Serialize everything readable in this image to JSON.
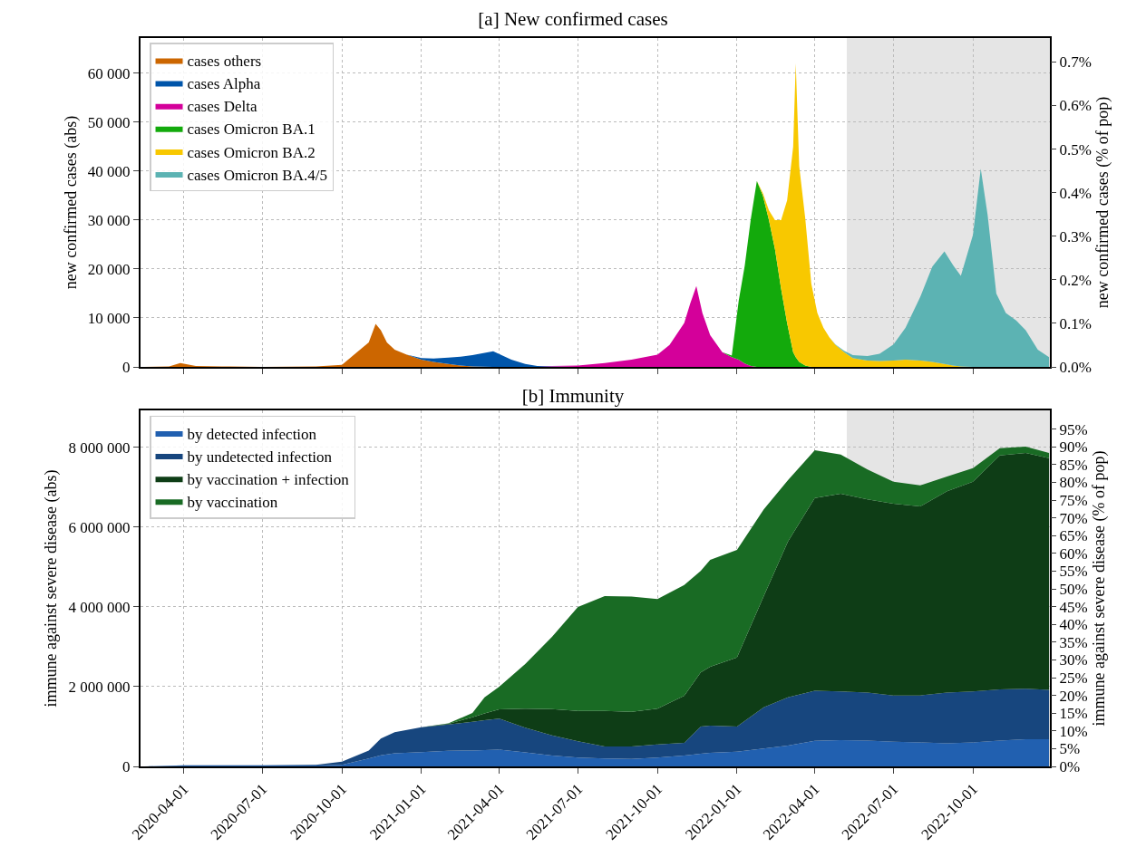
{
  "chart_data": [
    {
      "type": "area",
      "title": "[a] New confirmed cases",
      "ylabel": "new confirmed cases (abs)",
      "y2label": "new confirmed cases (% of pop)",
      "stacked": true,
      "grid": true,
      "legend": "top left",
      "tick_labels": "y",
      "x": [
        "2020-02-15",
        "2020-03-15",
        "2020-03-28",
        "2020-04-15",
        "2020-05-15",
        "2020-07-01",
        "2020-09-01",
        "2020-10-01",
        "2020-10-15",
        "2020-11-01",
        "2020-11-09",
        "2020-11-15",
        "2020-11-22",
        "2020-12-01",
        "2020-12-15",
        "2021-01-01",
        "2021-01-15",
        "2021-02-01",
        "2021-02-15",
        "2021-03-01",
        "2021-03-25",
        "2021-04-15",
        "2021-05-01",
        "2021-05-15",
        "2021-06-01",
        "2021-07-01",
        "2021-08-01",
        "2021-09-01",
        "2021-10-01",
        "2021-10-15",
        "2021-11-01",
        "2021-11-08",
        "2021-11-15",
        "2021-11-22",
        "2021-12-01",
        "2021-12-15",
        "2021-12-26",
        "2022-01-03",
        "2022-01-10",
        "2022-01-17",
        "2022-01-24",
        "2022-01-31",
        "2022-02-07",
        "2022-02-14",
        "2022-02-21",
        "2022-02-28",
        "2022-03-07",
        "2022-03-10",
        "2022-03-14",
        "2022-03-21",
        "2022-03-28",
        "2022-04-04",
        "2022-04-11",
        "2022-04-18",
        "2022-04-25",
        "2022-05-05",
        "2022-05-15",
        "2022-06-01",
        "2022-06-15",
        "2022-07-01",
        "2022-07-15",
        "2022-08-01",
        "2022-08-15",
        "2022-08-29",
        "2022-09-08",
        "2022-09-17",
        "2022-10-01",
        "2022-10-10",
        "2022-10-18",
        "2022-10-28",
        "2022-11-08",
        "2022-11-20",
        "2022-12-01",
        "2022-12-15",
        "2022-12-28"
      ],
      "series": [
        {
          "name": "cases others",
          "color": "#cc6600",
          "values": [
            0,
            100,
            800,
            200,
            100,
            0,
            100,
            400,
            2500,
            5000,
            8800,
            7500,
            5000,
            3500,
            2500,
            1500,
            1000,
            600,
            300,
            100,
            0,
            null,
            null,
            null,
            null,
            null,
            null,
            null,
            null,
            null,
            null,
            null,
            null,
            null,
            null,
            null,
            null,
            null,
            null,
            null,
            null,
            null,
            null,
            null,
            null,
            null,
            null,
            null,
            null,
            null,
            null,
            null,
            null,
            null,
            null,
            null,
            null,
            null,
            null,
            null,
            null,
            null,
            null,
            null,
            null,
            null,
            null,
            null,
            null,
            null,
            null,
            null,
            null,
            null,
            null
          ]
        },
        {
          "name": "cases Alpha",
          "color": "#0055aa",
          "values": [
            null,
            null,
            null,
            null,
            null,
            null,
            null,
            null,
            null,
            null,
            null,
            null,
            null,
            null,
            0,
            300,
            700,
            1300,
            1800,
            2300,
            3200,
            1500,
            600,
            200,
            100,
            0,
            null,
            null,
            null,
            null,
            null,
            null,
            null,
            null,
            null,
            null,
            null,
            null,
            null,
            null,
            null,
            null,
            null,
            null,
            null,
            null,
            null,
            null,
            null,
            null,
            null,
            null,
            null,
            null,
            null,
            null,
            null,
            null,
            null,
            null,
            null,
            null,
            null,
            null,
            null,
            null,
            null,
            null,
            null,
            null,
            null,
            null,
            null,
            null,
            null
          ]
        },
        {
          "name": "cases Delta",
          "color": "#d4009a",
          "values": [
            null,
            null,
            null,
            null,
            null,
            null,
            null,
            null,
            null,
            null,
            null,
            null,
            null,
            null,
            null,
            null,
            null,
            null,
            null,
            null,
            null,
            null,
            null,
            0,
            100,
            300,
            800,
            1500,
            2500,
            4500,
            9000,
            13000,
            16500,
            11000,
            6500,
            3000,
            2000,
            1500,
            700,
            200,
            0,
            null,
            null,
            null,
            null,
            null,
            null,
            null,
            null,
            null,
            null,
            null,
            null,
            null,
            null,
            null,
            null,
            null,
            null,
            null,
            null,
            null,
            null,
            null,
            null,
            null,
            null,
            null,
            null,
            null,
            null,
            null,
            null,
            null,
            null
          ]
        },
        {
          "name": "cases Omicron BA.1",
          "color": "#13aa0c",
          "values": [
            null,
            null,
            null,
            null,
            null,
            null,
            null,
            null,
            null,
            null,
            null,
            null,
            null,
            null,
            null,
            null,
            null,
            null,
            null,
            null,
            null,
            null,
            null,
            null,
            null,
            null,
            null,
            null,
            null,
            null,
            null,
            null,
            null,
            null,
            null,
            0,
            300,
            12000,
            20000,
            30000,
            38000,
            35000,
            30000,
            24000,
            16000,
            9000,
            3000,
            2000,
            1000,
            300,
            0,
            null,
            null,
            null,
            null,
            null,
            null,
            null,
            null,
            null,
            null,
            null,
            null,
            null,
            null,
            null,
            null,
            null,
            null,
            null,
            null,
            null,
            null,
            null,
            null
          ]
        },
        {
          "name": "cases Omicron BA.2",
          "color": "#f8c800",
          "values": [
            null,
            null,
            null,
            null,
            null,
            null,
            null,
            null,
            null,
            null,
            null,
            null,
            null,
            null,
            null,
            null,
            null,
            null,
            null,
            null,
            null,
            null,
            null,
            null,
            null,
            null,
            null,
            null,
            null,
            null,
            null,
            null,
            null,
            null,
            null,
            null,
            null,
            null,
            null,
            null,
            0,
            500,
            2000,
            6000,
            14000,
            25000,
            42000,
            60000,
            40000,
            30000,
            17000,
            11000,
            8000,
            6000,
            4500,
            3000,
            1800,
            1300,
            1200,
            1300,
            1500,
            1300,
            1000,
            600,
            300,
            100,
            0,
            null,
            null,
            null,
            null,
            null,
            null,
            null,
            null
          ]
        },
        {
          "name": "cases Omicron BA.4/5",
          "color": "#5cb3b3",
          "values": [
            null,
            null,
            null,
            null,
            null,
            null,
            null,
            null,
            null,
            null,
            null,
            null,
            null,
            null,
            null,
            null,
            null,
            null,
            null,
            null,
            null,
            null,
            null,
            null,
            null,
            null,
            null,
            null,
            null,
            null,
            null,
            null,
            null,
            null,
            null,
            null,
            null,
            null,
            null,
            null,
            null,
            null,
            null,
            null,
            null,
            null,
            null,
            null,
            null,
            null,
            null,
            null,
            null,
            0,
            100,
            300,
            600,
            900,
            1500,
            3300,
            6500,
            13000,
            19500,
            23000,
            20500,
            18500,
            27000,
            40500,
            31000,
            15000,
            11000,
            9500,
            7500,
            3500,
            2000
          ]
        }
      ],
      "xlim": [
        "2020-02-11",
        "2022-12-29"
      ],
      "xticks": [
        "2020-04-01",
        "2020-07-01",
        "2020-10-01",
        "2021-01-01",
        "2021-04-01",
        "2021-07-01",
        "2021-10-01",
        "2022-01-01",
        "2022-04-01",
        "2022-07-01",
        "2022-10-01"
      ],
      "ylim": [
        0,
        67200
      ],
      "yticks": [
        0,
        {
          "value": 10000,
          "label": "10 000"
        },
        {
          "value": 20000,
          "label": "20 000"
        },
        {
          "value": 30000,
          "label": "30 000"
        },
        {
          "value": 40000,
          "label": "40 000"
        },
        {
          "value": 50000,
          "label": "50 000"
        },
        {
          "value": 60000,
          "label": "60 000"
        }
      ],
      "y2lim": [
        0,
        0.755
      ],
      "y2ticks": [
        {
          "value": 0,
          "label": "0.0%"
        },
        {
          "value": 0.1,
          "label": "0.1%"
        },
        {
          "value": 0.2,
          "label": "0.2%"
        },
        {
          "value": 0.3,
          "label": "0.3%"
        },
        {
          "value": 0.4,
          "label": "0.4%"
        },
        {
          "value": 0.5,
          "label": "0.5%"
        },
        {
          "value": 0.6,
          "label": "0.6%"
        },
        {
          "value": 0.7,
          "label": "0.7%"
        }
      ],
      "bands": [
        {
          "axis": "x",
          "from": "2022-05-08",
          "to": "2022-12-29",
          "color": "#e5e5e5"
        }
      ]
    },
    {
      "type": "area",
      "title": "[b] Immunity",
      "ylabel": "immune against severe disease (abs)",
      "y2label": "immune against severe disease (% of pop)",
      "stacked": true,
      "grid": true,
      "legend": "top left",
      "x": [
        "2020-02-15",
        "2020-04-01",
        "2020-07-01",
        "2020-09-01",
        "2020-10-01",
        "2020-11-01",
        "2020-11-15",
        "2020-12-01",
        "2021-01-01",
        "2021-02-01",
        "2021-03-01",
        "2021-03-15",
        "2021-04-01",
        "2021-05-01",
        "2021-06-01",
        "2021-07-01",
        "2021-08-01",
        "2021-09-01",
        "2021-10-01",
        "2021-11-01",
        "2021-11-20",
        "2021-12-01",
        "2022-01-01",
        "2022-02-01",
        "2022-03-01",
        "2022-04-01",
        "2022-05-01",
        "2022-06-01",
        "2022-07-01",
        "2022-08-01",
        "2022-09-01",
        "2022-10-01",
        "2022-11-01",
        "2022-12-01",
        "2022-12-28"
      ],
      "series": [
        {
          "name": "by detected infection",
          "color": "#2160b0",
          "values": [
            0,
            20000,
            20000,
            20000,
            40000,
            200000,
            280000,
            330000,
            360000,
            390000,
            400000,
            410000,
            420000,
            350000,
            270000,
            220000,
            200000,
            190000,
            220000,
            270000,
            320000,
            340000,
            370000,
            450000,
            520000,
            640000,
            660000,
            650000,
            620000,
            600000,
            580000,
            600000,
            650000,
            680000,
            680000
          ]
        },
        {
          "name": "by undetected infection",
          "color": "#17467e",
          "values": [
            0,
            10000,
            10000,
            20000,
            80000,
            200000,
            420000,
            530000,
            620000,
            660000,
            720000,
            750000,
            780000,
            620000,
            510000,
            410000,
            300000,
            310000,
            330000,
            320000,
            680000,
            680000,
            630000,
            1030000,
            1210000,
            1260000,
            1220000,
            1200000,
            1160000,
            1180000,
            1270000,
            1280000,
            1280000,
            1270000,
            1240000
          ]
        },
        {
          "name": "by vaccination + infection",
          "color": "#0e3d16",
          "values": [
            null,
            null,
            null,
            null,
            null,
            null,
            null,
            null,
            0,
            20000,
            110000,
            170000,
            230000,
            480000,
            660000,
            760000,
            890000,
            870000,
            900000,
            1180000,
            1360000,
            1480000,
            1730000,
            2790000,
            3910000,
            4830000,
            4960000,
            4850000,
            4810000,
            4740000,
            5050000,
            5260000,
            5870000,
            5910000,
            5810000
          ]
        },
        {
          "name": "by vaccination",
          "color": "#196b24",
          "values": [
            null,
            null,
            null,
            null,
            null,
            null,
            null,
            null,
            0,
            10000,
            110000,
            400000,
            570000,
            1120000,
            1810000,
            2610000,
            2880000,
            2890000,
            2750000,
            2780000,
            2540000,
            2680000,
            2700000,
            2180000,
            1540000,
            1200000,
            980000,
            750000,
            550000,
            530000,
            370000,
            340000,
            180000,
            160000,
            130000
          ]
        }
      ],
      "xlim": [
        "2020-02-11",
        "2022-12-29"
      ],
      "xticks": [
        "2020-04-01",
        "2020-07-01",
        "2020-10-01",
        "2021-01-01",
        "2021-04-01",
        "2021-07-01",
        "2021-10-01",
        "2022-01-01",
        "2022-04-01",
        "2022-07-01",
        "2022-10-01"
      ],
      "ylim": [
        0,
        8930000
      ],
      "yticks": [
        0,
        {
          "value": 2000000,
          "label": "2 000 000"
        },
        {
          "value": 4000000,
          "label": "4 000 000"
        },
        {
          "value": 6000000,
          "label": "6 000 000"
        },
        {
          "value": 8000000,
          "label": "8 000 000"
        }
      ],
      "y2lim": [
        0,
        100.3
      ],
      "y2ticks": [
        {
          "value": 0,
          "label": "0%"
        },
        {
          "value": 5,
          "label": "5%"
        },
        {
          "value": 10,
          "label": "10%"
        },
        {
          "value": 15,
          "label": "15%"
        },
        {
          "value": 20,
          "label": "20%"
        },
        {
          "value": 25,
          "label": "25%"
        },
        {
          "value": 30,
          "label": "30%"
        },
        {
          "value": 35,
          "label": "35%"
        },
        {
          "value": 40,
          "label": "40%"
        },
        {
          "value": 45,
          "label": "45%"
        },
        {
          "value": 50,
          "label": "50%"
        },
        {
          "value": 55,
          "label": "55%"
        },
        {
          "value": 60,
          "label": "60%"
        },
        {
          "value": 65,
          "label": "65%"
        },
        {
          "value": 70,
          "label": "70%"
        },
        {
          "value": 75,
          "label": "75%"
        },
        {
          "value": 80,
          "label": "80%"
        },
        {
          "value": 85,
          "label": "85%"
        },
        {
          "value": 90,
          "label": "90%"
        },
        {
          "value": 95,
          "label": "95%"
        }
      ],
      "bands": [
        {
          "axis": "x",
          "from": "2022-05-08",
          "to": "2022-12-29",
          "color": "#e5e5e5"
        }
      ]
    }
  ]
}
